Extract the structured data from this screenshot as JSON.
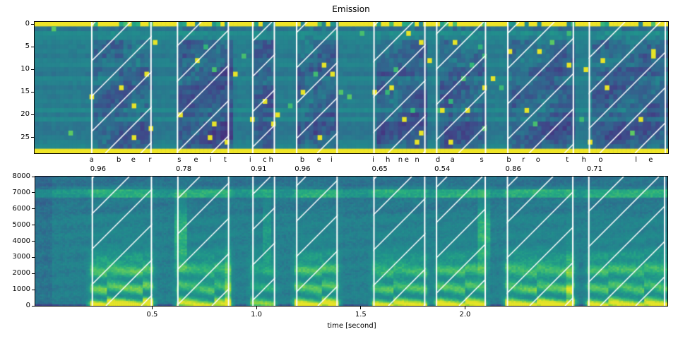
{
  "title": "Emission",
  "xlabel": "time [second]",
  "colors": {
    "background": "#ffffff",
    "frame": "#000000",
    "text": "#000000",
    "hatch": "#ffffff",
    "viridis": [
      "#440154",
      "#46327e",
      "#3f4a8a",
      "#31688e",
      "#26828e",
      "#21918c",
      "#28ae80",
      "#5ec962",
      "#addc30",
      "#fde725"
    ]
  },
  "chart_data": {
    "type": "heatmap",
    "description": "CTC forced-alignment figure: top = emission probability matrix (tokens x frames, viridis), bottom = audio spectrogram; white hatched spans mark aligned word segments shared by both plots",
    "charts": [
      {
        "name": "emission",
        "type": "heatmap",
        "title": "Emission",
        "colormap": "viridis",
        "rows": 29,
        "frames": 150,
        "ylim": [
          28.5,
          -0.5
        ],
        "xlim": [
          -0.06,
          2.97
        ],
        "yticks": [
          0,
          5,
          10,
          15,
          20,
          25
        ],
        "features": {
          "blank_token_row": 0,
          "blank_row_value": 1.0,
          "separator_row": 28,
          "separator_row_value": 1.0,
          "background_value_range": [
            0.3,
            0.6
          ]
        }
      },
      {
        "name": "spectrogram",
        "type": "heatmap",
        "colormap": "viridis",
        "xlabel": "time [second]",
        "xlim": [
          -0.06,
          2.97
        ],
        "ylim": [
          0,
          8000
        ],
        "xticks": [
          "0.5",
          "1.0",
          "1.5",
          "2.0"
        ],
        "yticks": [
          0,
          1000,
          2000,
          3000,
          4000,
          5000,
          6000,
          7000,
          8000
        ],
        "features": {
          "tonal_band_hz": [
            6800,
            7150
          ],
          "voiced_energy_below_hz": 2800
        }
      }
    ],
    "alignment": {
      "transcript": "aber seit ich bei ihnen das brot hole",
      "words": [
        {
          "word": "aber",
          "score": "0.96",
          "start": 0.21,
          "end": 0.5,
          "chars": [
            {
              "c": "a",
              "t": 0.21
            },
            {
              "c": "b",
              "t": 0.34
            },
            {
              "c": "e",
              "t": 0.41
            },
            {
              "c": "r",
              "t": 0.49
            }
          ]
        },
        {
          "word": "seit",
          "score": "0.78",
          "start": 0.62,
          "end": 0.87,
          "chars": [
            {
              "c": "s",
              "t": 0.63
            },
            {
              "c": "e",
              "t": 0.71
            },
            {
              "c": "i",
              "t": 0.78
            },
            {
              "c": "t",
              "t": 0.85
            }
          ]
        },
        {
          "word": "ich",
          "score": "0.91",
          "start": 0.98,
          "end": 1.09,
          "chars": [
            {
              "c": "i",
              "t": 0.97
            },
            {
              "c": "c",
              "t": 1.04
            },
            {
              "c": "h",
              "t": 1.07
            }
          ]
        },
        {
          "word": "bei",
          "score": "0.96",
          "start": 1.19,
          "end": 1.39,
          "chars": [
            {
              "c": "b",
              "t": 1.22
            },
            {
              "c": "e",
              "t": 1.3
            },
            {
              "c": "i",
              "t": 1.36
            }
          ]
        },
        {
          "word": "ihnen",
          "score": "0.65",
          "start": 1.56,
          "end": 1.81,
          "chars": [
            {
              "c": "i",
              "t": 1.56
            },
            {
              "c": "h",
              "t": 1.63
            },
            {
              "c": "n",
              "t": 1.69
            },
            {
              "c": "e",
              "t": 1.72
            },
            {
              "c": "n",
              "t": 1.77
            }
          ]
        },
        {
          "word": "das",
          "score": "0.54",
          "start": 1.86,
          "end": 2.1,
          "chars": [
            {
              "c": "d",
              "t": 1.87
            },
            {
              "c": "a",
              "t": 1.94
            },
            {
              "c": "s",
              "t": 2.08
            }
          ]
        },
        {
          "word": "brot",
          "score": "0.86",
          "start": 2.2,
          "end": 2.52,
          "chars": [
            {
              "c": "b",
              "t": 2.21
            },
            {
              "c": "r",
              "t": 2.28
            },
            {
              "c": "o",
              "t": 2.35
            },
            {
              "c": "t",
              "t": 2.49
            }
          ]
        },
        {
          "word": "hole",
          "score": "0.71",
          "start": 2.59,
          "end": 2.96,
          "chars": [
            {
              "c": "h",
              "t": 2.57
            },
            {
              "c": "o",
              "t": 2.65
            },
            {
              "c": "l",
              "t": 2.82
            },
            {
              "c": "e",
              "t": 2.89
            }
          ]
        }
      ]
    }
  }
}
